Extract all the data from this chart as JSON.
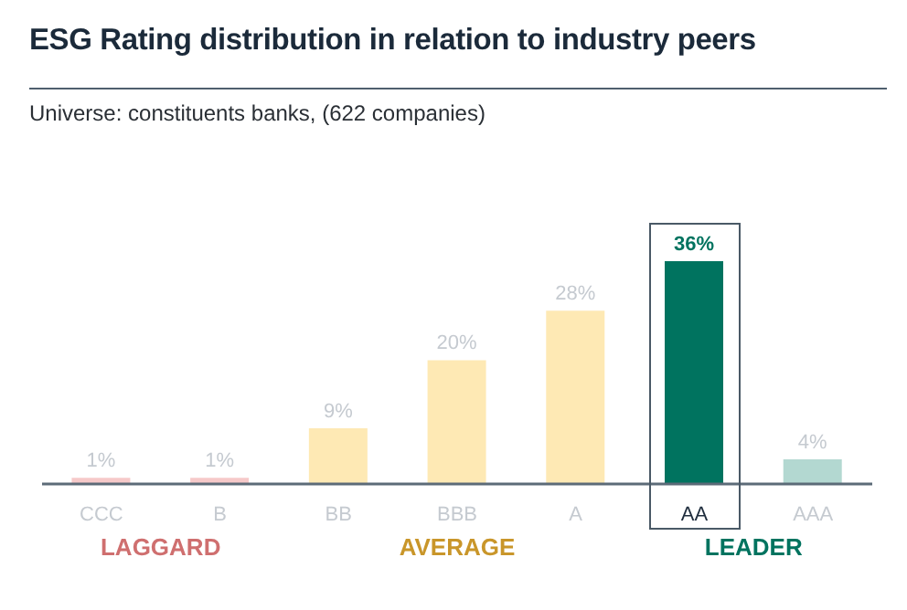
{
  "chart_data": {
    "type": "bar",
    "title": "ESG Rating distribution in relation to industry peers",
    "subtitle": "Universe: constituents banks, (622 companies)",
    "categories": [
      "CCC",
      "B",
      "BB",
      "BBB",
      "A",
      "AA",
      "AAA"
    ],
    "values": [
      1,
      1,
      9,
      20,
      28,
      36,
      4
    ],
    "value_labels": [
      "1%",
      "1%",
      "9%",
      "20%",
      "28%",
      "36%",
      "4%"
    ],
    "colors": [
      "#f6c9c9",
      "#f6c9c9",
      "#fee9b4",
      "#fee9b4",
      "#fee9b4",
      "#00735f",
      "#b3d8d1"
    ],
    "annotations": [
      "LAGGARD",
      "AVERAGE",
      "LEADER"
    ]
  }
}
